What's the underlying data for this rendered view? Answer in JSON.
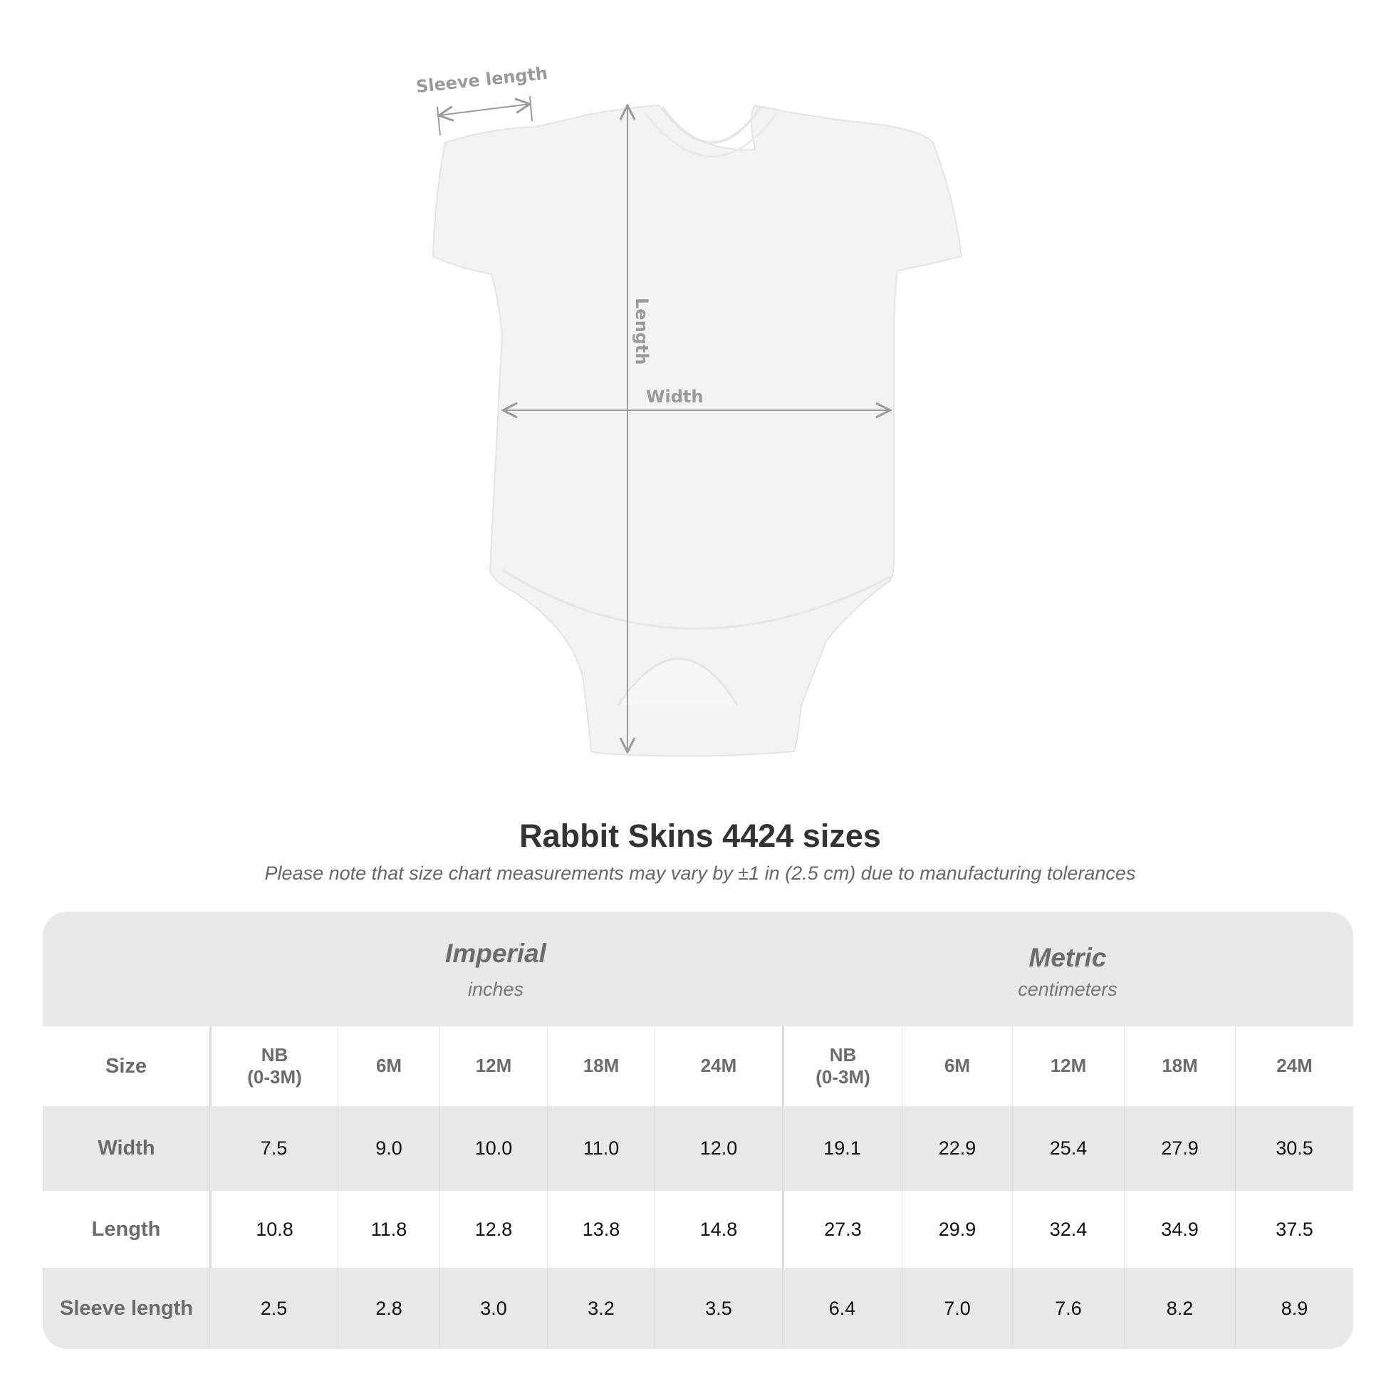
{
  "diagram": {
    "sleeve_label": "Sleeve length",
    "length_label": "Length",
    "width_label": "Width",
    "line_color": "#9a9a9a"
  },
  "title": "Rabbit Skins 4424 sizes",
  "subtitle": "Please note that size chart measurements may vary by ±1 in (2.5 cm) due to manufacturing tolerances",
  "table": {
    "imperial": {
      "name": "Imperial",
      "unit": "inches"
    },
    "metric": {
      "name": "Metric",
      "unit": "centimeters"
    },
    "size_label": "Size",
    "sizes": [
      "NB\n(0-3M)",
      "6M",
      "12M",
      "18M",
      "24M"
    ],
    "rows": [
      {
        "label": "Width",
        "imperial": [
          "7.5",
          "9.0",
          "10.0",
          "11.0",
          "12.0"
        ],
        "metric": [
          "19.1",
          "22.9",
          "25.4",
          "27.9",
          "30.5"
        ]
      },
      {
        "label": "Length",
        "imperial": [
          "10.8",
          "11.8",
          "12.8",
          "13.8",
          "14.8"
        ],
        "metric": [
          "27.3",
          "29.9",
          "32.4",
          "34.9",
          "37.5"
        ]
      },
      {
        "label": "Sleeve length",
        "imperial": [
          "2.5",
          "2.8",
          "3.0",
          "3.2",
          "3.5"
        ],
        "metric": [
          "6.4",
          "7.0",
          "7.6",
          "8.2",
          "8.9"
        ]
      }
    ]
  }
}
